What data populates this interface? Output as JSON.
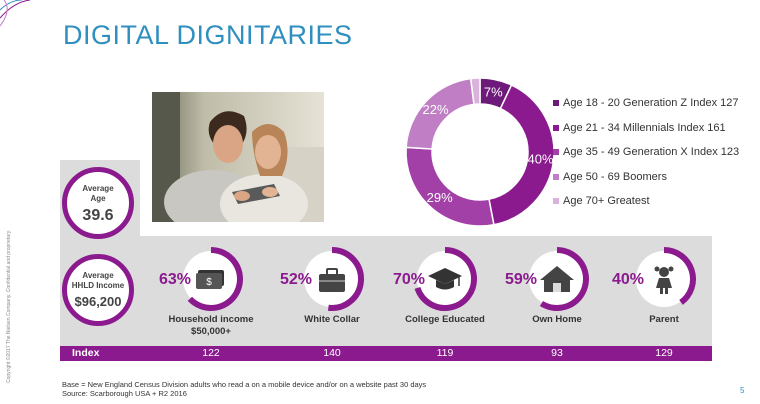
{
  "title": "DIGITAL DIGNITARIES",
  "side_note": "Copyright ©2017 The Nielsen Company. Confidential and proprietary.",
  "average_age": {
    "label_line1": "Average",
    "label_line2": "Age",
    "value": "39.6"
  },
  "average_income": {
    "label_line1": "Average",
    "label_line2": "HHLD Income",
    "value": "$96,200"
  },
  "colors": {
    "purple": "#8b1a8e",
    "band": "#dcdcdc",
    "title_blue": "#2f8fbf"
  },
  "chart_data": [
    {
      "type": "pie",
      "variant": "donut",
      "slices": [
        {
          "label": "Age 18 - 20 Generation Z Index 127",
          "value": 7,
          "display": "7%",
          "color": "#6e1a7a"
        },
        {
          "label": "Age 21 - 34 Millennials Index 161",
          "value": 40,
          "display": "40%",
          "color": "#8b1a8e"
        },
        {
          "label": "Age 35 - 49 Generation X Index 123",
          "value": 29,
          "display": "29%",
          "color": "#a340a8"
        },
        {
          "label": "Age 50 - 69 Boomers",
          "value": 22,
          "display": "22%",
          "color": "#c07fc4"
        },
        {
          "label": "Age 70+ Greatest",
          "value": 2,
          "display": "2%",
          "color": "#d9b3db"
        }
      ],
      "legend_position": "right"
    },
    {
      "type": "bar",
      "variant": "gauge-rings",
      "categories": [
        "Household income $50,000+",
        "White Collar",
        "College Educated",
        "Own Home",
        "Parent"
      ],
      "category_lines": [
        [
          "Household income",
          "$50,000+"
        ],
        [
          "White Collar"
        ],
        [
          "College Educated"
        ],
        [
          "Own Home"
        ],
        [
          "Parent"
        ]
      ],
      "percent_labels": [
        "63%",
        "52%",
        "70%",
        "59%",
        "40%"
      ],
      "values": [
        63,
        52,
        70,
        59,
        40
      ],
      "icons": [
        "money-icon",
        "briefcase-icon",
        "graduation-cap-icon",
        "house-icon",
        "child-icon"
      ],
      "index_title": "Index",
      "index_values": [
        "122",
        "140",
        "119",
        "93",
        "129"
      ]
    }
  ],
  "footer": {
    "line1": "Base = New England Census Division adults who read a on a mobile device and/or on a website past 30 days",
    "line2": "Source: Scarborough USA +  R2 2016"
  },
  "page_number": "5"
}
